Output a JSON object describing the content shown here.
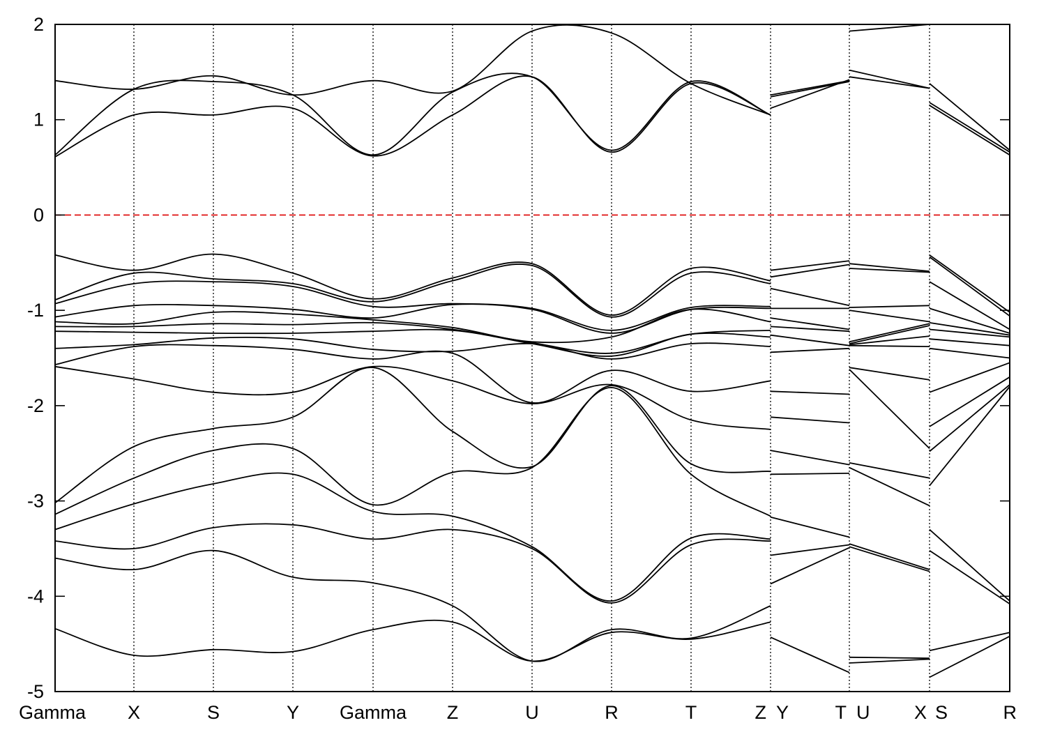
{
  "chart_data": {
    "type": "line",
    "title": "",
    "xlabel": "",
    "ylabel": "",
    "ylim": [
      -5,
      2
    ],
    "yticks": [
      -5,
      -4,
      -3,
      -2,
      -1,
      0,
      1,
      2
    ],
    "fermi_level": 0,
    "colors": {
      "bands": "#000000",
      "fermi_line": "#dd0000",
      "kpoint_lines": "#000000"
    },
    "segments": [
      {
        "from": "Gamma",
        "to": "X"
      },
      {
        "from": "X",
        "to": "S"
      },
      {
        "from": "S",
        "to": "Y"
      },
      {
        "from": "Y",
        "to": "Gamma"
      },
      {
        "from": "Gamma",
        "to": "Z"
      },
      {
        "from": "Z",
        "to": "U"
      },
      {
        "from": "U",
        "to": "R"
      },
      {
        "from": "R",
        "to": "T"
      },
      {
        "from": "T",
        "to": "Z"
      },
      {
        "from": "Y",
        "to": "T"
      },
      {
        "from": "U",
        "to": "X"
      },
      {
        "from": "S",
        "to": "R"
      }
    ],
    "kpath_labels": [
      "Gamma",
      "X",
      "S",
      "Y",
      "Gamma",
      "Z",
      "U",
      "R",
      "T",
      "Z",
      "Y",
      "T",
      "U",
      "X",
      "S",
      "R"
    ],
    "kpoints": [
      0,
      1,
      2,
      3,
      4,
      5,
      6,
      7,
      8,
      9,
      9,
      10,
      10,
      11,
      11,
      12
    ],
    "kpath_breaks": [
      9,
      10,
      11
    ],
    "series": [
      {
        "values": [
          0.61,
          1.05,
          1.05,
          1.12,
          0.62,
          1.05,
          1.45,
          0.66,
          1.38,
          1.05,
          1.12,
          1.42,
          1.45,
          1.33,
          1.15,
          0.63
        ]
      },
      {
        "values": [
          0.63,
          1.32,
          1.4,
          1.26,
          0.63,
          1.29,
          1.45,
          0.68,
          1.4,
          1.05,
          1.24,
          1.4,
          1.52,
          1.33,
          1.18,
          0.66
        ]
      },
      {
        "values": [
          1.41,
          1.32,
          1.46,
          1.26,
          1.41,
          1.3,
          1.93,
          1.91,
          1.38,
          1.05,
          1.26,
          1.41,
          1.93,
          2.0,
          1.38,
          0.68
        ]
      },
      {
        "values": [
          -0.42,
          -0.58,
          -0.41,
          -0.61,
          -0.88,
          -0.66,
          -0.51,
          -1.05,
          -0.56,
          -0.69,
          -0.58,
          -0.48,
          -0.51,
          -0.59,
          -0.42,
          -1.02
        ]
      },
      {
        "values": [
          -0.89,
          -0.61,
          -0.67,
          -0.72,
          -0.91,
          -0.69,
          -0.53,
          -1.07,
          -0.61,
          -0.72,
          -0.65,
          -0.52,
          -0.56,
          -0.6,
          -0.44,
          -1.06
        ]
      },
      {
        "values": [
          -0.93,
          -0.72,
          -0.7,
          -0.75,
          -0.96,
          -0.93,
          -0.98,
          -1.21,
          -0.97,
          -0.96,
          -0.77,
          -0.95,
          -0.97,
          -0.95,
          -0.7,
          -1.2
        ]
      },
      {
        "values": [
          -1.07,
          -0.95,
          -0.95,
          -0.99,
          -1.08,
          -0.94,
          -0.99,
          -1.24,
          -0.99,
          -0.98,
          -0.98,
          -0.98,
          -1.0,
          -1.12,
          -0.98,
          -1.24
        ]
      },
      {
        "values": [
          -1.12,
          -1.14,
          -1.02,
          -1.04,
          -1.1,
          -1.18,
          -1.33,
          -1.28,
          -0.99,
          -1.12,
          -1.08,
          -1.2,
          -1.33,
          -1.14,
          -1.13,
          -1.26
        ]
      },
      {
        "values": [
          -1.17,
          -1.17,
          -1.14,
          -1.15,
          -1.13,
          -1.2,
          -1.34,
          -1.45,
          -1.25,
          -1.21,
          -1.17,
          -1.22,
          -1.35,
          -1.16,
          -1.2,
          -1.28
        ]
      },
      {
        "values": [
          -1.22,
          -1.23,
          -1.24,
          -1.24,
          -1.22,
          -1.21,
          -1.35,
          -1.48,
          -1.25,
          -1.28,
          -1.26,
          -1.37,
          -1.36,
          -1.27,
          -1.3,
          -1.37
        ]
      },
      {
        "values": [
          -1.4,
          -1.36,
          -1.29,
          -1.3,
          -1.41,
          -1.43,
          -1.35,
          -1.51,
          -1.35,
          -1.38,
          -1.44,
          -1.4,
          -1.37,
          -1.38,
          -1.4,
          -1.5
        ]
      },
      {
        "values": [
          -1.57,
          -1.38,
          -1.37,
          -1.41,
          -1.51,
          -1.45,
          -1.97,
          -1.63,
          -1.85,
          -1.74,
          -1.85,
          -1.88,
          -1.6,
          -1.73,
          -1.86,
          -1.55
        ]
      },
      {
        "values": [
          -1.59,
          -1.72,
          -1.86,
          -1.86,
          -1.59,
          -1.74,
          -1.98,
          -1.78,
          -2.15,
          -2.25,
          -2.12,
          -2.18,
          -1.62,
          -2.45,
          -2.22,
          -1.7
        ]
      },
      {
        "values": [
          -3.02,
          -2.43,
          -2.24,
          -2.12,
          -1.6,
          -2.27,
          -2.64,
          -1.79,
          -2.61,
          -2.69,
          -2.47,
          -2.62,
          -2.6,
          -2.76,
          -2.48,
          -1.78
        ]
      },
      {
        "values": [
          -3.14,
          -2.76,
          -2.47,
          -2.45,
          -3.04,
          -2.7,
          -2.65,
          -1.81,
          -2.72,
          -3.16,
          -2.72,
          -2.71,
          -2.65,
          -3.05,
          -2.84,
          -1.8
        ]
      },
      {
        "values": [
          -3.3,
          -3.03,
          -2.82,
          -2.72,
          -3.11,
          -3.16,
          -3.48,
          -4.05,
          -3.39,
          -3.4,
          -3.17,
          -3.38,
          -3.45,
          -3.72,
          -3.3,
          -4.05
        ]
      },
      {
        "values": [
          -3.42,
          -3.5,
          -3.28,
          -3.25,
          -3.4,
          -3.3,
          -3.5,
          -4.07,
          -3.46,
          -3.42,
          -3.57,
          -3.46,
          -3.48,
          -3.74,
          -3.52,
          -4.08
        ]
      },
      {
        "values": [
          -3.6,
          -3.72,
          -3.52,
          -3.8,
          -3.86,
          -4.1,
          -4.68,
          -4.35,
          -4.44,
          -4.1,
          -3.87,
          -3.49,
          -4.64,
          -4.65,
          -4.57,
          -4.38
        ]
      },
      {
        "values": [
          -4.34,
          -4.62,
          -4.56,
          -4.58,
          -4.35,
          -4.27,
          -4.68,
          -4.38,
          -4.45,
          -4.27,
          -4.43,
          -4.8,
          -4.7,
          -4.66,
          -4.85,
          -4.42
        ]
      }
    ]
  }
}
